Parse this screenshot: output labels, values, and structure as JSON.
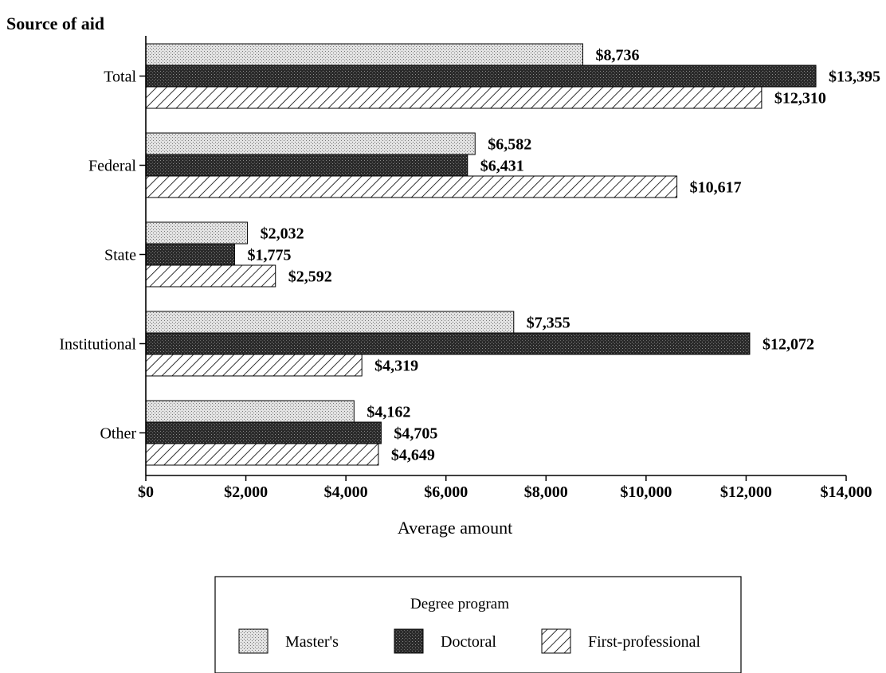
{
  "chart_data": {
    "type": "bar",
    "orientation": "horizontal",
    "title": "",
    "ylabel": "Source of aid",
    "xlabel": "Average amount",
    "categories": [
      "Total",
      "Federal",
      "State",
      "Institutional",
      "Other"
    ],
    "series": [
      {
        "name": "Master's",
        "pattern": "dots",
        "values": [
          8736,
          6582,
          2032,
          7355,
          4162
        ],
        "labels": [
          "$8,736",
          "$6,582",
          "$2,032",
          "$7,355",
          "$4,162"
        ]
      },
      {
        "name": "Doctoral",
        "pattern": "dense",
        "values": [
          13395,
          6431,
          1775,
          12072,
          4705
        ],
        "labels": [
          "$13,395",
          "$6,431",
          "$1,775",
          "$12,072",
          "$4,705"
        ]
      },
      {
        "name": "First-professional",
        "pattern": "hatch",
        "values": [
          12310,
          10617,
          2592,
          4319,
          4649
        ],
        "labels": [
          "$12,310",
          "$10,617",
          "$2,592",
          "$4,319",
          "$4,649"
        ]
      }
    ],
    "xlim": [
      0,
      14000
    ],
    "xticks": [
      0,
      2000,
      4000,
      6000,
      8000,
      10000,
      12000,
      14000
    ],
    "xtick_labels": [
      "$0",
      "$2,000",
      "$4,000",
      "$6,000",
      "$8,000",
      "$10,000",
      "$12,000",
      "$14,000"
    ],
    "grid": false,
    "legend": {
      "title": "Degree program",
      "position": "bottom-center"
    }
  }
}
